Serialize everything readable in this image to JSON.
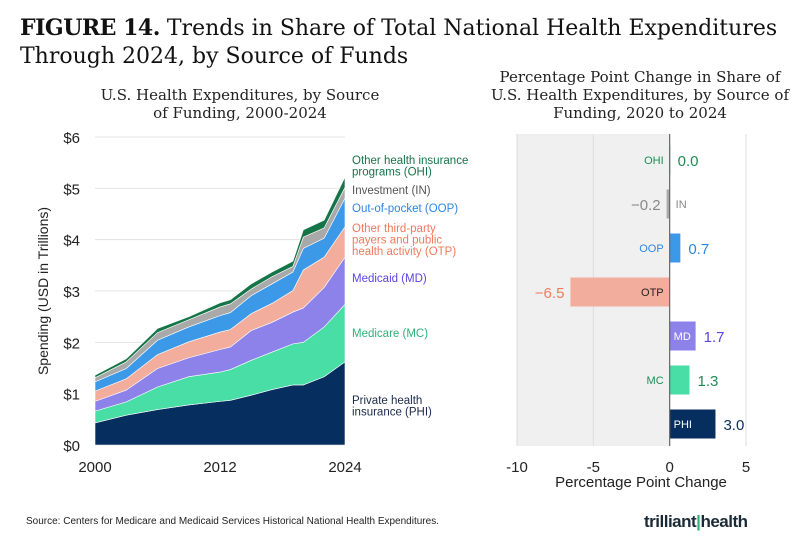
{
  "figure": {
    "label": "FIGURE 14.",
    "title": "Trends in Share of Total National Health Expenditures Through 2024, by Source of Funds"
  },
  "source": "Source: Centers for Medicare and Medicaid Services Historical National Health Expenditures.",
  "logo": "trilliant health",
  "chart_data": [
    {
      "type": "area",
      "stacked": true,
      "title": "U.S. Health Expenditures, by Source of Funding, 2000-2024",
      "xlabel": "",
      "ylabel": "Spending (USD in Trillions)",
      "xlim": [
        2000,
        2024
      ],
      "ylim": [
        0,
        6
      ],
      "xticks": [
        "2000",
        "2012",
        "2024"
      ],
      "yticks": [
        "$0",
        "$1",
        "$2",
        "$3",
        "$4",
        "$5",
        "$6"
      ],
      "grid": "horizontal",
      "legend": "right (inline labels)",
      "x": [
        2000,
        2003,
        2006,
        2009,
        2012,
        2013,
        2015,
        2017,
        2019,
        2020,
        2022,
        2024
      ],
      "series": [
        {
          "name": "Private health insurance (PHI)",
          "color": "#062e5e",
          "values": [
            0.43,
            0.58,
            0.69,
            0.78,
            0.85,
            0.87,
            0.97,
            1.08,
            1.17,
            1.17,
            1.33,
            1.62
          ]
        },
        {
          "name": "Medicare (MC)",
          "color": "#48dea5",
          "values": [
            0.23,
            0.26,
            0.44,
            0.55,
            0.57,
            0.6,
            0.68,
            0.73,
            0.8,
            0.83,
            0.97,
            1.12
          ]
        },
        {
          "name": "Medicaid (MD)",
          "color": "#8c82ea",
          "values": [
            0.19,
            0.23,
            0.36,
            0.37,
            0.44,
            0.44,
            0.58,
            0.58,
            0.62,
            0.67,
            0.77,
            0.92
          ]
        },
        {
          "name": "Other third-party payers and public health activity (OTP)",
          "color": "#f2ad9c",
          "values": [
            0.2,
            0.22,
            0.27,
            0.31,
            0.34,
            0.34,
            0.33,
            0.37,
            0.42,
            0.74,
            0.59,
            0.59
          ]
        },
        {
          "name": "Out-of-pocket (OOP)",
          "color": "#3c99e8",
          "values": [
            0.18,
            0.2,
            0.28,
            0.29,
            0.32,
            0.33,
            0.35,
            0.38,
            0.36,
            0.42,
            0.37,
            0.56
          ]
        },
        {
          "name": "Investment (IN)",
          "color": "#a9a9a9",
          "values": [
            0.08,
            0.13,
            0.15,
            0.14,
            0.17,
            0.17,
            0.13,
            0.14,
            0.11,
            0.22,
            0.2,
            0.21
          ]
        },
        {
          "name": "Other health insurance programs (OHI)",
          "color": "#167548",
          "values": [
            0.05,
            0.06,
            0.08,
            0.06,
            0.08,
            0.08,
            0.1,
            0.09,
            0.1,
            0.14,
            0.15,
            0.2
          ]
        }
      ],
      "label_colors": [
        "#1b2a4a",
        "#2eb27a",
        "#5b45e0",
        "#f07a5e",
        "#2f86e0",
        "#555555",
        "#167548"
      ]
    },
    {
      "type": "bar",
      "orientation": "horizontal",
      "title": "Percentage Point Change in Share of U.S. Health Expenditures, by Source of Funding, 2020 to 2024",
      "xlabel": "Percentage Point Change",
      "xlim": [
        -10,
        5
      ],
      "xticks": [
        "-10",
        "-5",
        "0",
        "5"
      ],
      "grid": "vertical",
      "categories": [
        "OHI",
        "IN",
        "OOP",
        "OTP",
        "MD",
        "MC",
        "PHI"
      ],
      "values": [
        0.0,
        -0.2,
        0.7,
        -6.5,
        1.7,
        1.3,
        3.0
      ],
      "labels": [
        "0.0",
        "-0.2",
        "0.7",
        "-6.5",
        "1.7",
        "1.3",
        "3.0"
      ],
      "colors": [
        "#167548",
        "#a9a9a9",
        "#3c99e8",
        "#f2ad9c",
        "#8c82ea",
        "#48dea5",
        "#062e5e"
      ],
      "text_colors": [
        "#1f8a55",
        "#888888",
        "#2f86e0",
        "#f07a5e",
        "#5b45e0",
        "#1f8a55",
        "#0b2d5b"
      ]
    }
  ]
}
